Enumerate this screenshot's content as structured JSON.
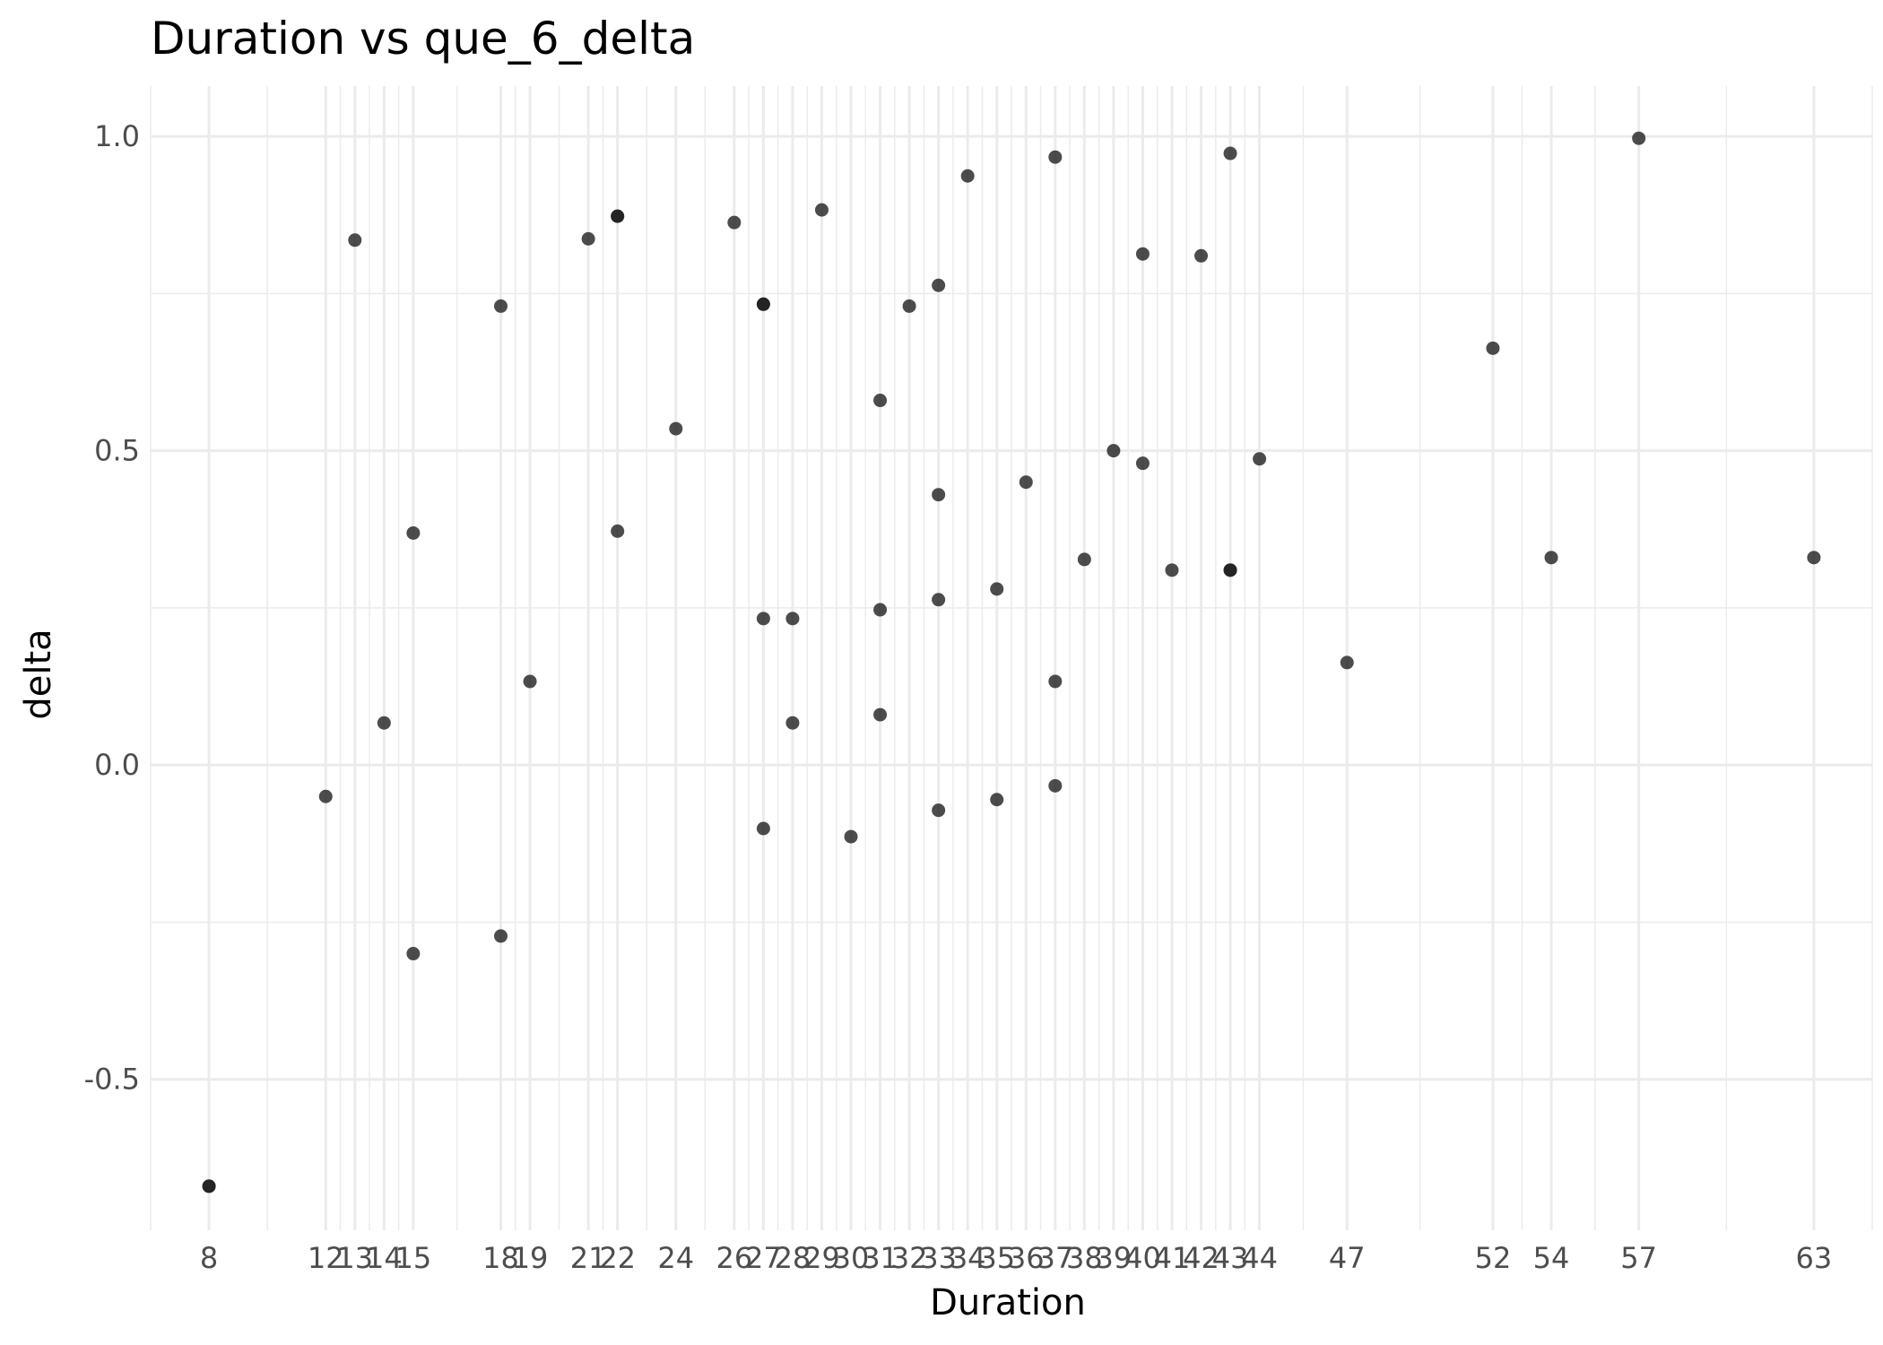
{
  "chart_data": {
    "type": "scatter",
    "title": "Duration vs que_6_delta",
    "xlabel": "Duration",
    "ylabel": "delta",
    "x_ticks": [
      8,
      12,
      13,
      14,
      15,
      18,
      19,
      21,
      22,
      24,
      26,
      27,
      28,
      29,
      30,
      31,
      32,
      33,
      34,
      35,
      36,
      37,
      38,
      39,
      40,
      41,
      42,
      43,
      44,
      47,
      52,
      54,
      57,
      63
    ],
    "y_ticks": [
      -0.5,
      0.0,
      0.5,
      1.0
    ],
    "y_tick_labels": [
      "-0.5",
      "0.0",
      "0.5",
      "1.0"
    ],
    "xlim": [
      6,
      65
    ],
    "ylim": [
      -0.74,
      1.08
    ],
    "grid": true,
    "point_color": "#1a1a1a",
    "points": [
      {
        "x": 8,
        "y": -0.67
      },
      {
        "x": 8,
        "y": -0.67
      },
      {
        "x": 12,
        "y": -0.05
      },
      {
        "x": 13,
        "y": 0.835
      },
      {
        "x": 14,
        "y": 0.067
      },
      {
        "x": 15,
        "y": 0.369
      },
      {
        "x": 15,
        "y": -0.3
      },
      {
        "x": 18,
        "y": 0.73
      },
      {
        "x": 18,
        "y": -0.272
      },
      {
        "x": 19,
        "y": 0.133
      },
      {
        "x": 21,
        "y": 0.837
      },
      {
        "x": 22,
        "y": 0.873
      },
      {
        "x": 22,
        "y": 0.873
      },
      {
        "x": 22,
        "y": 0.372
      },
      {
        "x": 24,
        "y": 0.535
      },
      {
        "x": 26,
        "y": 0.863
      },
      {
        "x": 27,
        "y": 0.733
      },
      {
        "x": 27,
        "y": 0.733
      },
      {
        "x": 27,
        "y": 0.233
      },
      {
        "x": 27,
        "y": -0.101
      },
      {
        "x": 28,
        "y": 0.067
      },
      {
        "x": 28,
        "y": 0.233
      },
      {
        "x": 29,
        "y": 0.883
      },
      {
        "x": 30,
        "y": -0.114
      },
      {
        "x": 31,
        "y": 0.58
      },
      {
        "x": 31,
        "y": 0.247
      },
      {
        "x": 31,
        "y": 0.08
      },
      {
        "x": 32,
        "y": 0.73
      },
      {
        "x": 33,
        "y": 0.763
      },
      {
        "x": 33,
        "y": 0.43
      },
      {
        "x": 33,
        "y": 0.263
      },
      {
        "x": 33,
        "y": -0.072
      },
      {
        "x": 34,
        "y": 0.937
      },
      {
        "x": 35,
        "y": 0.28
      },
      {
        "x": 35,
        "y": -0.055
      },
      {
        "x": 36,
        "y": 0.45
      },
      {
        "x": 37,
        "y": 0.967
      },
      {
        "x": 37,
        "y": 0.133
      },
      {
        "x": 37,
        "y": -0.033
      },
      {
        "x": 38,
        "y": 0.327
      },
      {
        "x": 39,
        "y": 0.5
      },
      {
        "x": 40,
        "y": 0.813
      },
      {
        "x": 40,
        "y": 0.48
      },
      {
        "x": 41,
        "y": 0.31
      },
      {
        "x": 42,
        "y": 0.81
      },
      {
        "x": 43,
        "y": 0.973
      },
      {
        "x": 43,
        "y": 0.31
      },
      {
        "x": 43,
        "y": 0.31
      },
      {
        "x": 44,
        "y": 0.487
      },
      {
        "x": 47,
        "y": 0.163
      },
      {
        "x": 52,
        "y": 0.663
      },
      {
        "x": 54,
        "y": 0.33
      },
      {
        "x": 57,
        "y": 0.997
      },
      {
        "x": 63,
        "y": 0.33
      }
    ]
  }
}
